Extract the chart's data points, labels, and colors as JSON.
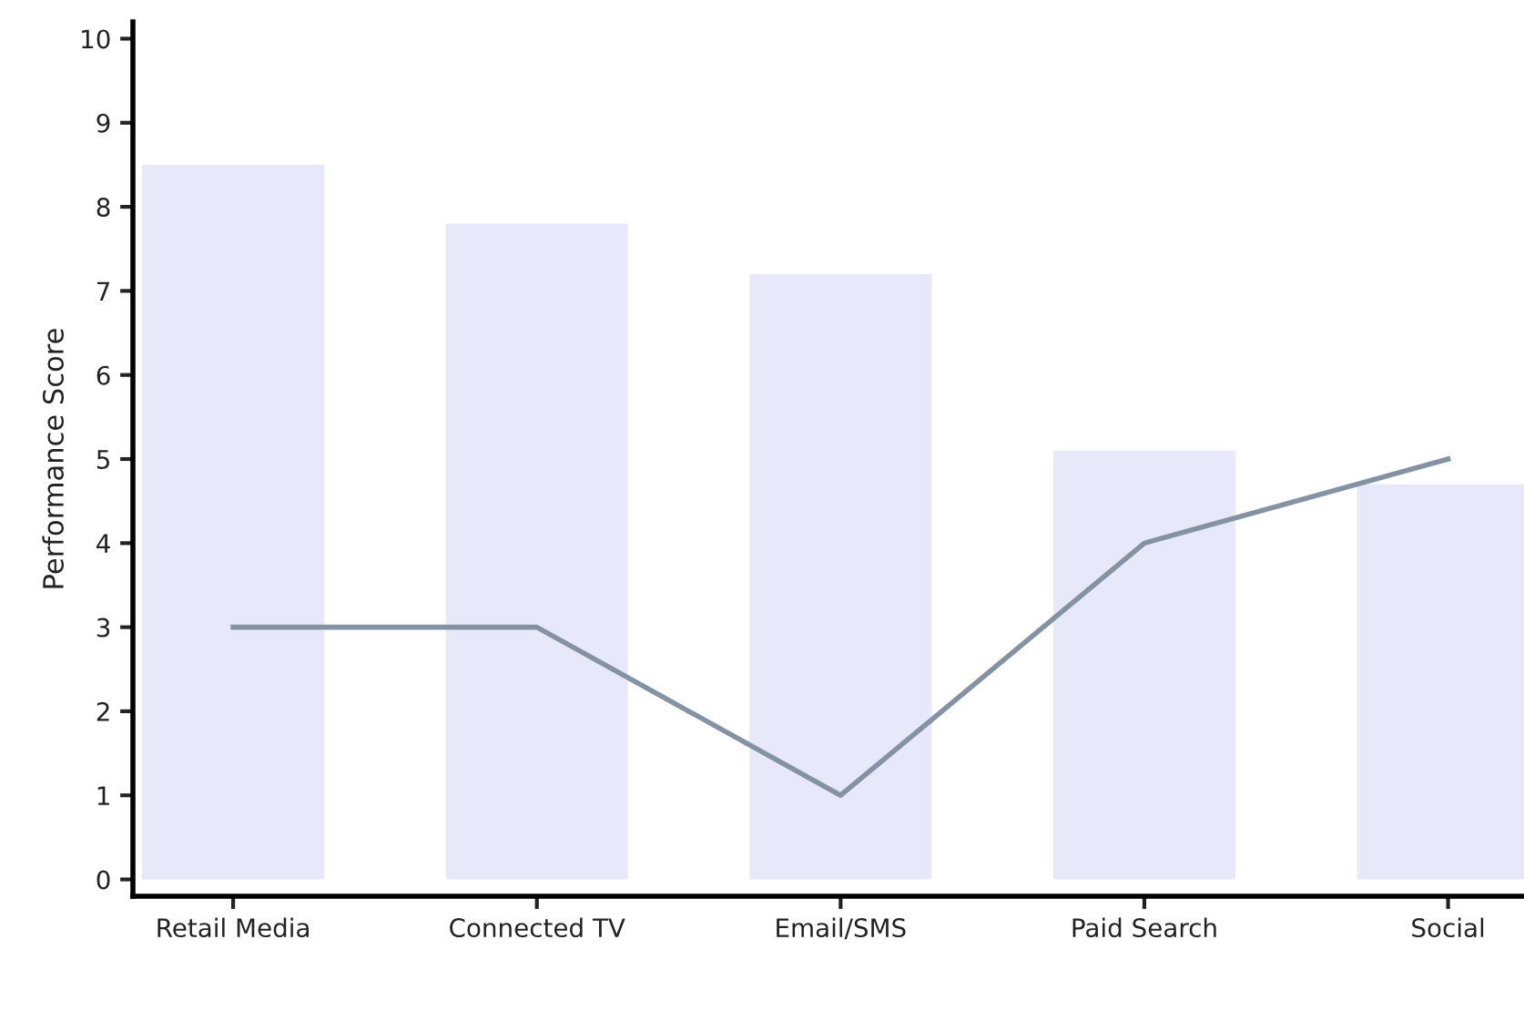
{
  "chart_data": {
    "type": "bar",
    "ylabel": "Performance Score",
    "categories": [
      "Retail Media",
      "Connected TV",
      "Email/SMS",
      "Paid Search",
      "Social"
    ],
    "series": [
      {
        "color": "#e8e8fb",
        "values": [
          8.5,
          7.8,
          7.2,
          5.1,
          4.7
        ]
      },
      {
        "type": "line",
        "color": "#8493a4",
        "values": [
          3,
          3,
          1,
          4,
          5
        ]
      }
    ],
    "ylim": [
      -0.2,
      10.2
    ],
    "yticks": [
      0,
      1,
      2,
      3,
      4,
      5,
      6,
      7,
      8,
      9,
      10
    ],
    "grid": false,
    "marker": "none",
    "line_style": "solid"
  }
}
